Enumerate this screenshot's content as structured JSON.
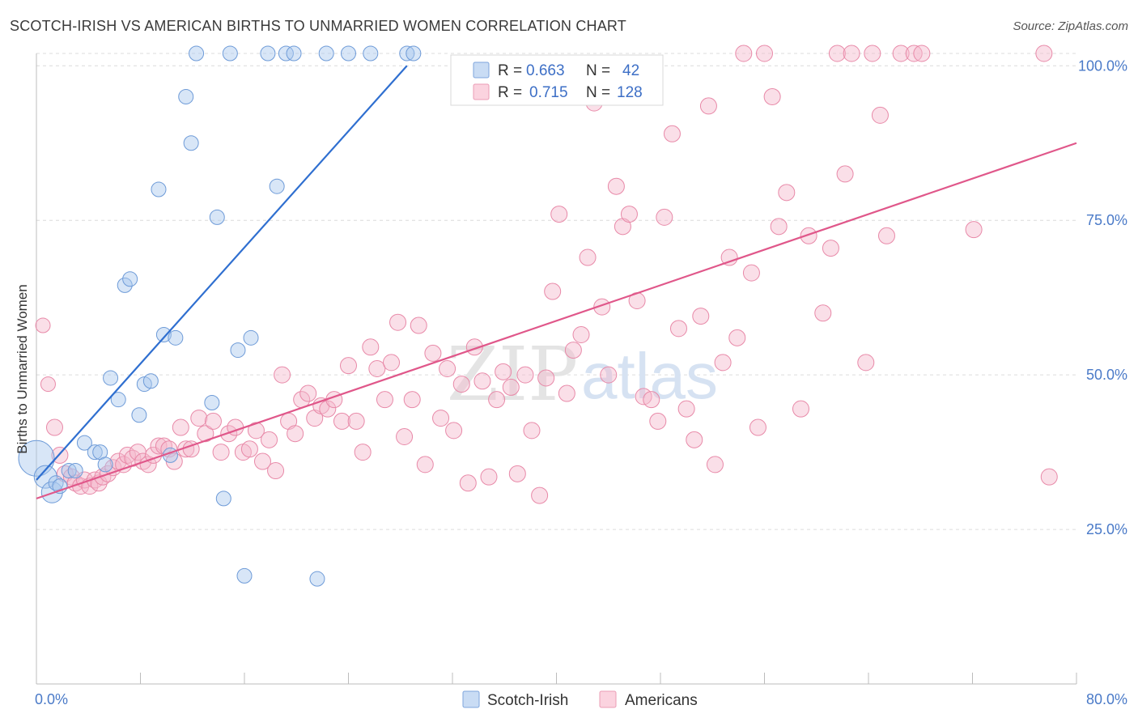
{
  "header": {
    "title": "SCOTCH-IRISH VS AMERICAN BIRTHS TO UNMARRIED WOMEN CORRELATION CHART",
    "source": "Source: ZipAtlas.com"
  },
  "watermark": {
    "zip": "ZIP",
    "atlas": "atlas"
  },
  "legend": {
    "rows": [
      {
        "r_label": "R =",
        "r_value": "0.663",
        "n_label": "N =",
        "n_value": "42",
        "color": "#a8c8ee"
      },
      {
        "r_label": "R =",
        "r_value": "0.715",
        "n_label": "N =",
        "n_value": "128",
        "color": "#f5b8cb"
      }
    ]
  },
  "bottom_legend": {
    "series1": "Scotch-Irish",
    "series2": "Americans"
  },
  "chart_data": {
    "type": "scatter",
    "title": "SCOTCH-IRISH VS AMERICAN BIRTHS TO UNMARRIED WOMEN CORRELATION CHART",
    "xlabel": "",
    "ylabel": "Births to Unmarried Women",
    "xlim": [
      0,
      80
    ],
    "ylim": [
      0,
      102
    ],
    "x_tick_labels": [
      "0.0%",
      "80.0%"
    ],
    "y_tick_values": [
      25,
      50,
      75,
      100
    ],
    "y_tick_labels": [
      "25.0%",
      "50.0%",
      "75.0%",
      "100.0%"
    ],
    "grid": true,
    "legend_position": "top-center",
    "series": [
      {
        "name": "Scotch-Irish",
        "color": "#a8c8ee",
        "stroke": "#6e9bd8",
        "line_color": "#2f6fd0",
        "r": 0.663,
        "n": 42,
        "trend": {
          "x": [
            0.0,
            28.5
          ],
          "y": [
            33.0,
            100.0
          ]
        },
        "points": [
          [
            0.0,
            36.5,
            22
          ],
          [
            0.7,
            33.5,
            14
          ],
          [
            1.2,
            31.0,
            13
          ],
          [
            1.5,
            32.5,
            9
          ],
          [
            1.8,
            32.0,
            9
          ],
          [
            2.5,
            34.5,
            9
          ],
          [
            3.0,
            34.5,
            9
          ],
          [
            3.7,
            39.0,
            9
          ],
          [
            4.5,
            37.5,
            9
          ],
          [
            4.9,
            37.5,
            9
          ],
          [
            5.3,
            35.5,
            9
          ],
          [
            5.7,
            49.5,
            9
          ],
          [
            6.3,
            46.0,
            9
          ],
          [
            6.8,
            64.5,
            9
          ],
          [
            7.2,
            65.5,
            9
          ],
          [
            7.9,
            43.5,
            9
          ],
          [
            8.3,
            48.5,
            9
          ],
          [
            8.8,
            49.0,
            9
          ],
          [
            9.4,
            80.0,
            9
          ],
          [
            9.8,
            56.5,
            9
          ],
          [
            10.3,
            37.0,
            9
          ],
          [
            10.7,
            56.0,
            9
          ],
          [
            11.5,
            95.0,
            9
          ],
          [
            11.9,
            87.5,
            9
          ],
          [
            12.3,
            102.0,
            9
          ],
          [
            13.5,
            45.5,
            9
          ],
          [
            13.9,
            75.5,
            9
          ],
          [
            14.4,
            30.0,
            9
          ],
          [
            14.9,
            102.0,
            9
          ],
          [
            15.5,
            54.0,
            9
          ],
          [
            16.0,
            17.5,
            9
          ],
          [
            16.5,
            56.0,
            9
          ],
          [
            17.8,
            102.0,
            9
          ],
          [
            18.5,
            80.5,
            9
          ],
          [
            19.2,
            102.0,
            9
          ],
          [
            19.8,
            102.0,
            9
          ],
          [
            21.6,
            17.0,
            9
          ],
          [
            22.3,
            102.0,
            9
          ],
          [
            24.0,
            102.0,
            9
          ],
          [
            25.7,
            102.0,
            9
          ],
          [
            28.5,
            102.0,
            9
          ],
          [
            29.0,
            102.0,
            9
          ]
        ]
      },
      {
        "name": "Americans",
        "color": "#f5b8cb",
        "stroke": "#e889a8",
        "line_color": "#e0578a",
        "r": 0.715,
        "n": 128,
        "trend": {
          "x": [
            0.0,
            80.0
          ],
          "y": [
            30.0,
            87.5
          ]
        },
        "points": [
          [
            0.5,
            58.0,
            9
          ],
          [
            0.9,
            48.5,
            9
          ],
          [
            1.4,
            41.5,
            10
          ],
          [
            1.8,
            37.0,
            10
          ],
          [
            2.2,
            34.0,
            10
          ],
          [
            2.7,
            33.5,
            10
          ],
          [
            3.0,
            32.5,
            10
          ],
          [
            3.4,
            32.0,
            10
          ],
          [
            3.7,
            33.0,
            10
          ],
          [
            4.1,
            32.0,
            10
          ],
          [
            4.5,
            33.0,
            10
          ],
          [
            4.8,
            32.5,
            10
          ],
          [
            5.1,
            33.5,
            10
          ],
          [
            5.5,
            34.0,
            10
          ],
          [
            5.9,
            35.0,
            10
          ],
          [
            6.3,
            36.0,
            10
          ],
          [
            6.7,
            35.5,
            10
          ],
          [
            7.0,
            37.0,
            10
          ],
          [
            7.4,
            36.5,
            10
          ],
          [
            7.8,
            37.5,
            10
          ],
          [
            8.2,
            36.0,
            10
          ],
          [
            8.6,
            35.5,
            10
          ],
          [
            9.0,
            37.0,
            10
          ],
          [
            9.4,
            38.5,
            10
          ],
          [
            9.8,
            38.5,
            10
          ],
          [
            10.2,
            38.0,
            10
          ],
          [
            10.6,
            36.0,
            10
          ],
          [
            11.1,
            41.5,
            10
          ],
          [
            11.5,
            38.0,
            10
          ],
          [
            11.9,
            38.0,
            10
          ],
          [
            12.5,
            43.0,
            10
          ],
          [
            13.0,
            40.5,
            10
          ],
          [
            13.6,
            42.5,
            10
          ],
          [
            14.2,
            37.5,
            10
          ],
          [
            14.8,
            40.5,
            10
          ],
          [
            15.3,
            41.5,
            10
          ],
          [
            15.9,
            37.5,
            10
          ],
          [
            16.4,
            38.0,
            10
          ],
          [
            16.9,
            41.0,
            10
          ],
          [
            17.4,
            36.0,
            10
          ],
          [
            17.9,
            39.5,
            10
          ],
          [
            18.4,
            34.5,
            10
          ],
          [
            18.9,
            50.0,
            10
          ],
          [
            19.4,
            42.5,
            10
          ],
          [
            19.9,
            40.5,
            10
          ],
          [
            20.4,
            46.0,
            10
          ],
          [
            20.9,
            47.0,
            10
          ],
          [
            21.4,
            43.0,
            10
          ],
          [
            21.9,
            45.0,
            10
          ],
          [
            22.4,
            44.5,
            10
          ],
          [
            22.9,
            46.0,
            10
          ],
          [
            23.5,
            42.5,
            10
          ],
          [
            24.0,
            51.5,
            10
          ],
          [
            24.6,
            42.5,
            10
          ],
          [
            25.1,
            37.5,
            10
          ],
          [
            25.7,
            54.5,
            10
          ],
          [
            26.2,
            51.0,
            10
          ],
          [
            26.8,
            46.0,
            10
          ],
          [
            27.3,
            52.0,
            10
          ],
          [
            27.8,
            58.5,
            10
          ],
          [
            28.3,
            40.0,
            10
          ],
          [
            28.9,
            46.0,
            10
          ],
          [
            29.4,
            58.0,
            10
          ],
          [
            29.9,
            35.5,
            10
          ],
          [
            30.5,
            53.5,
            10
          ],
          [
            31.1,
            43.0,
            10
          ],
          [
            31.6,
            51.0,
            10
          ],
          [
            32.1,
            41.0,
            10
          ],
          [
            32.7,
            48.5,
            10
          ],
          [
            33.2,
            32.5,
            10
          ],
          [
            33.7,
            54.5,
            10
          ],
          [
            34.3,
            49.0,
            10
          ],
          [
            34.8,
            33.5,
            10
          ],
          [
            35.4,
            46.0,
            10
          ],
          [
            35.9,
            50.5,
            10
          ],
          [
            36.5,
            48.0,
            10
          ],
          [
            37.0,
            34.0,
            10
          ],
          [
            37.6,
            50.0,
            10
          ],
          [
            38.1,
            41.0,
            10
          ],
          [
            38.7,
            30.5,
            10
          ],
          [
            39.2,
            49.5,
            10
          ],
          [
            39.7,
            63.5,
            10
          ],
          [
            40.2,
            76.0,
            10
          ],
          [
            40.8,
            47.0,
            10
          ],
          [
            41.3,
            54.0,
            10
          ],
          [
            41.9,
            56.5,
            10
          ],
          [
            42.4,
            69.0,
            10
          ],
          [
            42.9,
            94.0,
            10
          ],
          [
            43.5,
            61.0,
            10
          ],
          [
            44.0,
            50.0,
            10
          ],
          [
            44.6,
            80.5,
            10
          ],
          [
            45.1,
            74.0,
            10
          ],
          [
            45.6,
            76.0,
            10
          ],
          [
            46.2,
            62.0,
            10
          ],
          [
            46.7,
            46.5,
            10
          ],
          [
            47.3,
            46.0,
            10
          ],
          [
            47.8,
            42.5,
            10
          ],
          [
            48.3,
            75.5,
            10
          ],
          [
            48.9,
            89.0,
            10
          ],
          [
            49.4,
            57.5,
            10
          ],
          [
            50.0,
            44.5,
            10
          ],
          [
            50.6,
            39.5,
            10
          ],
          [
            51.1,
            59.5,
            10
          ],
          [
            51.7,
            93.5,
            10
          ],
          [
            52.2,
            35.5,
            10
          ],
          [
            52.8,
            52.0,
            10
          ],
          [
            53.3,
            69.0,
            10
          ],
          [
            53.9,
            56.0,
            10
          ],
          [
            54.4,
            102.0,
            10
          ],
          [
            55.0,
            66.5,
            10
          ],
          [
            55.5,
            41.5,
            10
          ],
          [
            56.0,
            102.0,
            10
          ],
          [
            56.6,
            95.0,
            10
          ],
          [
            57.1,
            74.0,
            10
          ],
          [
            57.7,
            79.5,
            10
          ],
          [
            58.8,
            44.5,
            10
          ],
          [
            59.4,
            72.5,
            10
          ],
          [
            60.5,
            60.0,
            10
          ],
          [
            61.1,
            70.5,
            10
          ],
          [
            61.6,
            102.0,
            10
          ],
          [
            62.2,
            82.5,
            10
          ],
          [
            62.7,
            102.0,
            10
          ],
          [
            63.8,
            52.0,
            10
          ],
          [
            64.3,
            102.0,
            10
          ],
          [
            64.9,
            92.0,
            10
          ],
          [
            65.4,
            72.5,
            10
          ],
          [
            66.5,
            102.0,
            10
          ],
          [
            67.5,
            102.0,
            10
          ],
          [
            68.1,
            102.0,
            10
          ],
          [
            72.1,
            73.5,
            10
          ],
          [
            77.5,
            102.0,
            10
          ],
          [
            77.9,
            33.5,
            10
          ]
        ]
      }
    ]
  }
}
